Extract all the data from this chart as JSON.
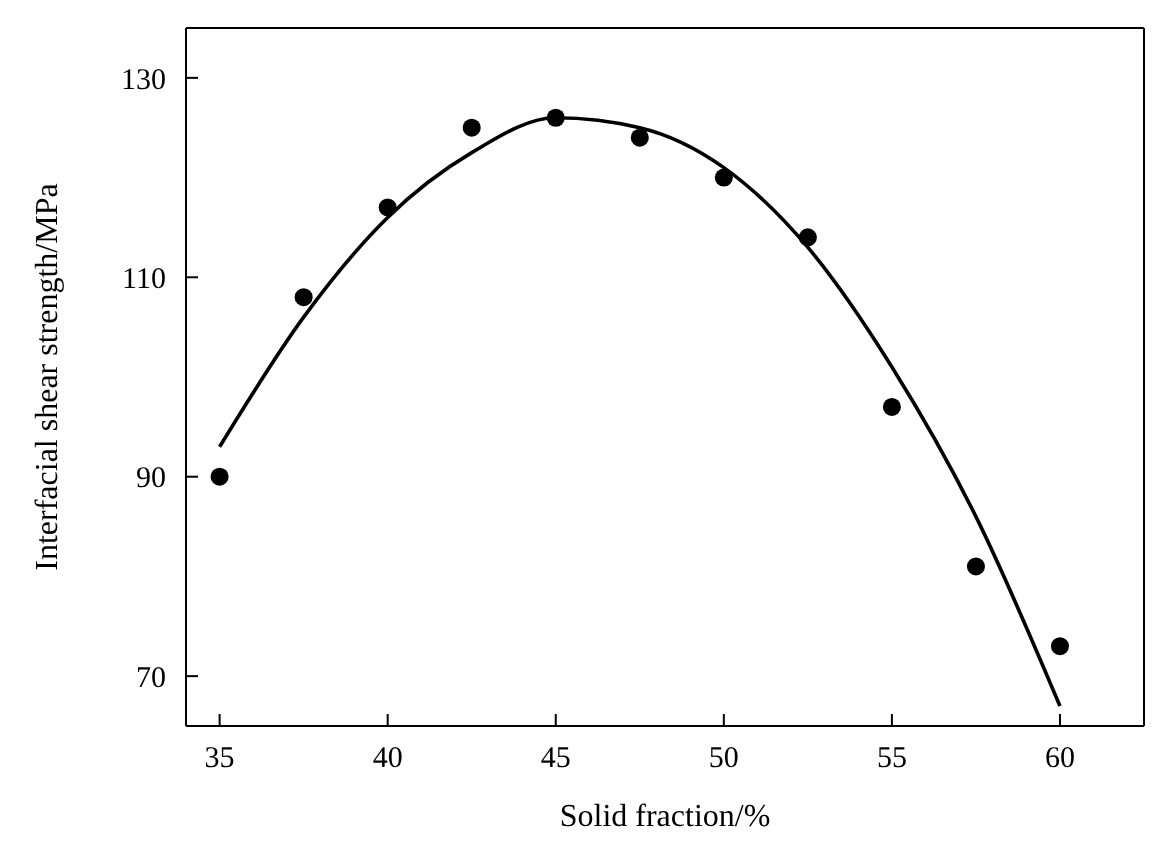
{
  "chart_data": {
    "type": "scatter",
    "xlabel": "Solid fraction/%",
    "ylabel": "Interfacial shear strength/MPa",
    "xlim": [
      34,
      62.5
    ],
    "ylim": [
      65,
      135
    ],
    "xticks": [
      35,
      40,
      45,
      50,
      55,
      60
    ],
    "yticks": [
      70,
      90,
      110,
      130
    ],
    "series": [
      {
        "color": "#000000",
        "marker": "circle",
        "x": [
          35,
          37.5,
          40,
          42.5,
          45,
          47.5,
          50,
          52.5,
          55,
          57.5,
          60
        ],
        "values": [
          90,
          108,
          117,
          125,
          126,
          124,
          120,
          114,
          97,
          81,
          73
        ]
      },
      {
        "type": "line",
        "color": "#000000",
        "marker": "none",
        "line_style": "solid",
        "x": [
          35,
          37.5,
          40,
          42.5,
          45,
          47.5,
          50,
          52.5,
          55,
          57.5,
          60
        ],
        "values": [
          93,
          106,
          116,
          122.5,
          126,
          125,
          121,
          113,
          101,
          86,
          67
        ]
      }
    ]
  }
}
